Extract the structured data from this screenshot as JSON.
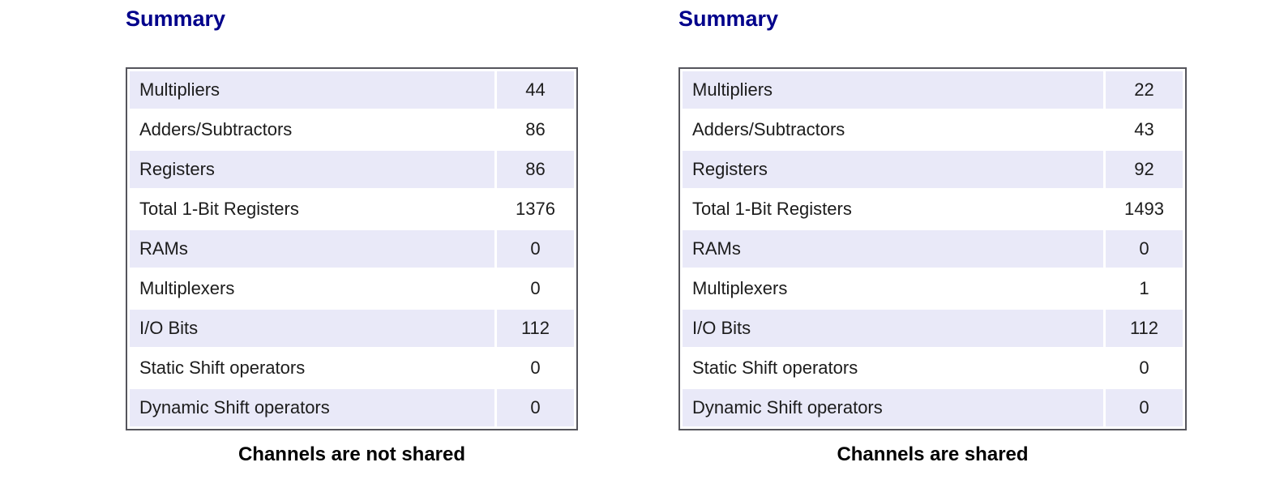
{
  "colors": {
    "heading-color": "#00008b",
    "row-alt": "#e9e9f8",
    "table-border": "#55555c",
    "text": "#1c1c1c",
    "caption-color": "#000000",
    "page-bg": "#ffffff"
  },
  "panels": [
    {
      "heading": "Summary",
      "caption": "Channels are not shared",
      "rows": [
        {
          "label": "Multipliers",
          "value": "44"
        },
        {
          "label": "Adders/Subtractors",
          "value": "86"
        },
        {
          "label": "Registers",
          "value": "86"
        },
        {
          "label": "Total 1-Bit Registers",
          "value": "1376"
        },
        {
          "label": "RAMs",
          "value": "0"
        },
        {
          "label": "Multiplexers",
          "value": "0"
        },
        {
          "label": "I/O Bits",
          "value": "112"
        },
        {
          "label": "Static Shift operators",
          "value": "0"
        },
        {
          "label": "Dynamic Shift operators",
          "value": "0"
        }
      ]
    },
    {
      "heading": "Summary",
      "caption": "Channels are shared",
      "rows": [
        {
          "label": "Multipliers",
          "value": "22"
        },
        {
          "label": "Adders/Subtractors",
          "value": "43"
        },
        {
          "label": "Registers",
          "value": "92"
        },
        {
          "label": "Total 1-Bit Registers",
          "value": "1493"
        },
        {
          "label": "RAMs",
          "value": "0"
        },
        {
          "label": "Multiplexers",
          "value": "1"
        },
        {
          "label": "I/O Bits",
          "value": "112"
        },
        {
          "label": "Static Shift operators",
          "value": "0"
        },
        {
          "label": "Dynamic Shift operators",
          "value": "0"
        }
      ]
    }
  ]
}
